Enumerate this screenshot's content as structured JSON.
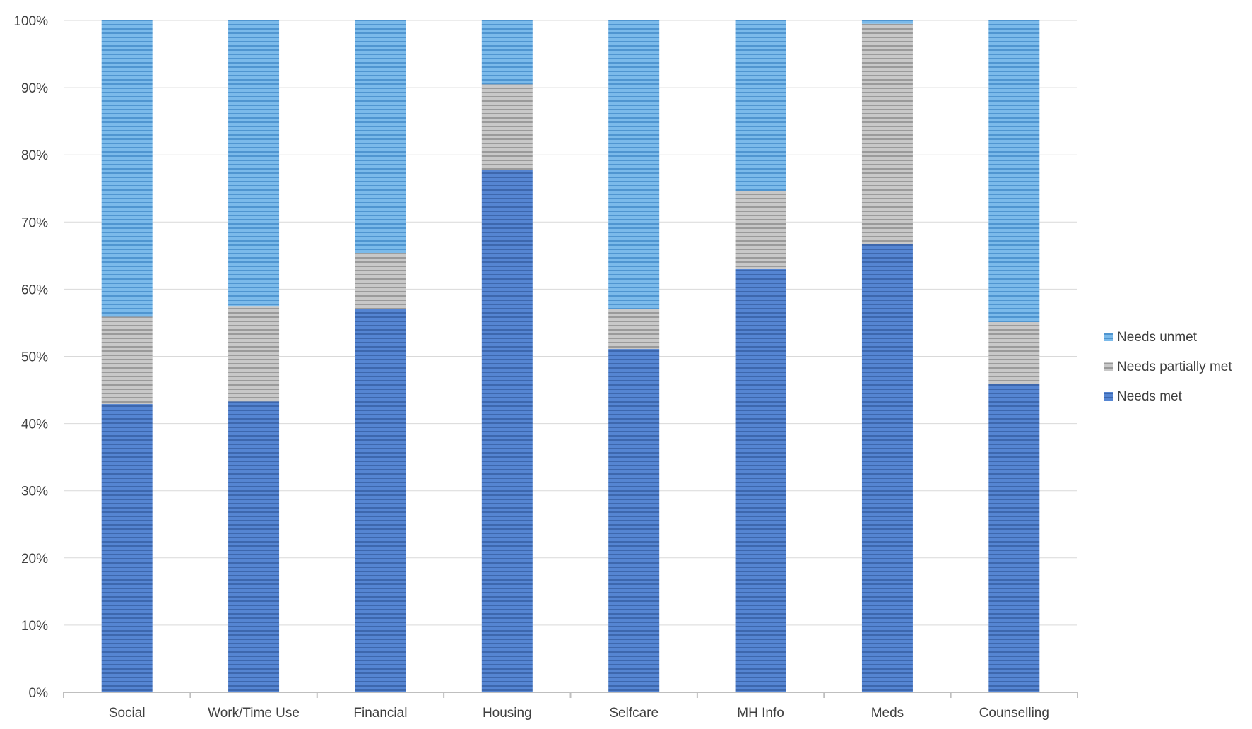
{
  "chart_data": {
    "type": "bar",
    "stacked": true,
    "title": "",
    "xlabel": "",
    "ylabel": "",
    "ylim": [
      0,
      100
    ],
    "y_ticks": [
      "0%",
      "10%",
      "20%",
      "30%",
      "40%",
      "50%",
      "60%",
      "70%",
      "80%",
      "90%",
      "100%"
    ],
    "grid": true,
    "legend_position": "right",
    "categories": [
      "Social",
      "Work/Time Use",
      "Financial",
      "Housing",
      "Selfcare",
      "MH Info",
      "Meds",
      "Counselling"
    ],
    "series": [
      {
        "name": "Needs met",
        "color": "#4a7bc9",
        "values": [
          42.9,
          43.3,
          57.0,
          77.8,
          51.1,
          63.0,
          66.7,
          45.9
        ]
      },
      {
        "name": "Needs partially met",
        "color": "#b4b4b4",
        "values": [
          13.0,
          14.2,
          8.4,
          12.7,
          5.9,
          11.6,
          32.8,
          9.2
        ]
      },
      {
        "name": "Needs unmet",
        "color": "#6aaee3",
        "values": [
          44.1,
          42.5,
          34.6,
          9.5,
          43.0,
          25.4,
          0.5,
          44.9
        ]
      }
    ],
    "legend_order": [
      "Needs unmet",
      "Needs partially met",
      "Needs met"
    ]
  }
}
